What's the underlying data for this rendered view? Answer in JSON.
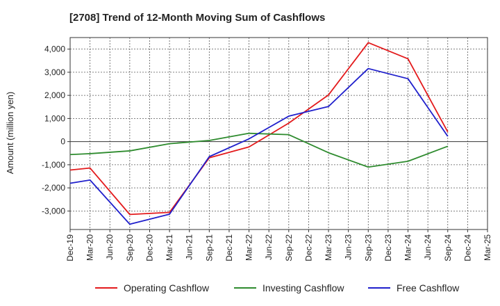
{
  "chart_data": {
    "type": "line",
    "title": "[2708]  Trend of 12-Month Moving Sum of Cashflows",
    "xlabel": "",
    "ylabel": "Amount (million yen)",
    "categories": [
      "Dec-19",
      "Mar-20",
      "Jun-20",
      "Sep-20",
      "Dec-20",
      "Mar-21",
      "Jun-21",
      "Sep-21",
      "Dec-21",
      "Mar-22",
      "Jun-22",
      "Sep-22",
      "Dec-22",
      "Mar-23",
      "Jun-23",
      "Sep-23",
      "Dec-23",
      "Mar-24",
      "Jun-24",
      "Sep-24",
      "Dec-24",
      "Mar-25"
    ],
    "ylim": [
      -3800,
      4500
    ],
    "yticks": [
      -3000,
      -2000,
      -1000,
      0,
      1000,
      2000,
      3000,
      4000
    ],
    "ytick_labels": [
      "-3,000",
      "-2,000",
      "-1,000",
      "0",
      "1,000",
      "2,000",
      "3,000",
      "4,000"
    ],
    "grid": true,
    "legend_position": "bottom",
    "series": [
      {
        "name": "Operating Cashflow",
        "color": "#e31a1c",
        "points": [
          {
            "x": "Dec-19",
            "y": -1230
          },
          {
            "x": "Mar-20",
            "y": -1140
          },
          {
            "x": "Sep-20",
            "y": -3150
          },
          {
            "x": "Mar-21",
            "y": -3060
          },
          {
            "x": "Sep-21",
            "y": -700
          },
          {
            "x": "Mar-22",
            "y": -230
          },
          {
            "x": "Sep-22",
            "y": 800
          },
          {
            "x": "Mar-23",
            "y": 2020
          },
          {
            "x": "Sep-23",
            "y": 4280
          },
          {
            "x": "Mar-24",
            "y": 3580
          },
          {
            "x": "Sep-24",
            "y": 420
          }
        ]
      },
      {
        "name": "Investing Cashflow",
        "color": "#2e8b2e",
        "points": [
          {
            "x": "Dec-19",
            "y": -560
          },
          {
            "x": "Mar-20",
            "y": -520
          },
          {
            "x": "Sep-20",
            "y": -400
          },
          {
            "x": "Mar-21",
            "y": -90
          },
          {
            "x": "Sep-21",
            "y": 50
          },
          {
            "x": "Mar-22",
            "y": 360
          },
          {
            "x": "Sep-22",
            "y": 300
          },
          {
            "x": "Mar-23",
            "y": -480
          },
          {
            "x": "Sep-23",
            "y": -1100
          },
          {
            "x": "Mar-24",
            "y": -850
          },
          {
            "x": "Sep-24",
            "y": -200
          }
        ]
      },
      {
        "name": "Free Cashflow",
        "color": "#1f1fcc",
        "points": [
          {
            "x": "Dec-19",
            "y": -1800
          },
          {
            "x": "Mar-20",
            "y": -1660
          },
          {
            "x": "Sep-20",
            "y": -3570
          },
          {
            "x": "Mar-21",
            "y": -3140
          },
          {
            "x": "Sep-21",
            "y": -650
          },
          {
            "x": "Mar-22",
            "y": 120
          },
          {
            "x": "Sep-22",
            "y": 1100
          },
          {
            "x": "Mar-23",
            "y": 1520
          },
          {
            "x": "Sep-23",
            "y": 3160
          },
          {
            "x": "Mar-24",
            "y": 2720
          },
          {
            "x": "Sep-24",
            "y": 230
          }
        ]
      }
    ]
  }
}
